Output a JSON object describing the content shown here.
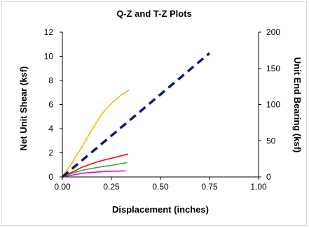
{
  "chart_data": {
    "type": "line",
    "title": "Q-Z and T-Z Plots",
    "xlabel": "Displacement (inches)",
    "ylabel": "Net Unit Shear (ksf)",
    "y2label": "Unit End Bearing (ksf)",
    "xlim": [
      0,
      1
    ],
    "ylim": [
      0,
      12
    ],
    "y2lim": [
      0,
      200
    ],
    "x_ticks": [
      "0.00",
      "0.25",
      "0.50",
      "0.75",
      "1.00"
    ],
    "y_ticks": [
      "0",
      "2",
      "4",
      "6",
      "8",
      "10",
      "12"
    ],
    "y2_ticks": [
      "0",
      "50",
      "100",
      "150",
      "200"
    ],
    "grid": false,
    "legend": "none",
    "series": [
      {
        "axis": "left",
        "color": "#f5b800",
        "style": "solid",
        "x": [
          0,
          0.05,
          0.1,
          0.15,
          0.2,
          0.25,
          0.3,
          0.34
        ],
        "y": [
          0,
          1.2,
          2.5,
          3.9,
          5.2,
          6.1,
          6.8,
          7.2
        ]
      },
      {
        "axis": "left",
        "color": "#e8120c",
        "style": "solid",
        "x": [
          0,
          0.05,
          0.1,
          0.15,
          0.2,
          0.25,
          0.3,
          0.335
        ],
        "y": [
          0,
          0.4,
          0.8,
          1.1,
          1.35,
          1.55,
          1.75,
          1.9
        ]
      },
      {
        "axis": "left",
        "color": "#3aaa35",
        "style": "solid",
        "x": [
          0,
          0.05,
          0.1,
          0.15,
          0.2,
          0.25,
          0.3,
          0.33
        ],
        "y": [
          0,
          0.3,
          0.55,
          0.7,
          0.85,
          0.95,
          1.1,
          1.2
        ]
      },
      {
        "axis": "left",
        "color": "#e600e6",
        "style": "solid",
        "x": [
          0,
          0.05,
          0.1,
          0.15,
          0.2,
          0.25,
          0.3,
          0.32
        ],
        "y": [
          0,
          0.15,
          0.3,
          0.38,
          0.43,
          0.47,
          0.5,
          0.5
        ]
      },
      {
        "axis": "right",
        "color": "#0d1a78",
        "style": "dashed",
        "x": [
          0,
          0.75
        ],
        "y": [
          0,
          171
        ]
      }
    ]
  }
}
